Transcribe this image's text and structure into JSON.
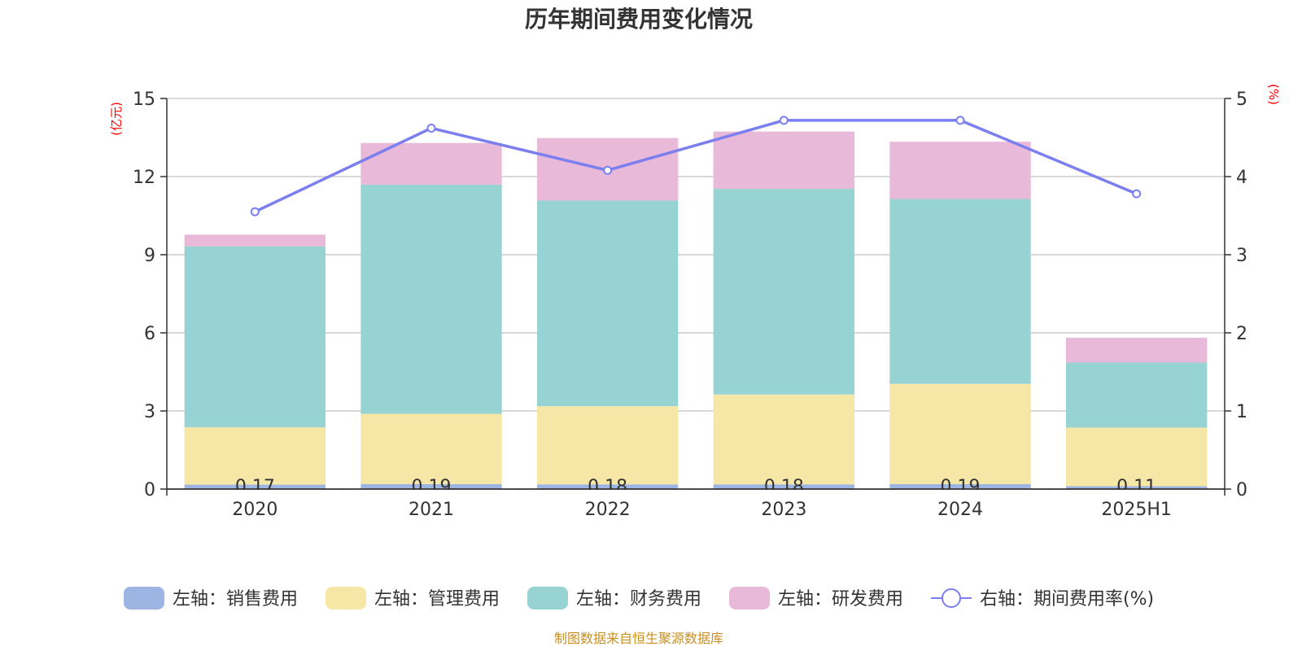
{
  "chart_data": {
    "type": "bar",
    "title": "历年期间费用变化情况",
    "y_left_unit": "(亿元)",
    "y_right_unit": "(%)",
    "categories": [
      "2020",
      "2021",
      "2022",
      "2023",
      "2024",
      "2025H1"
    ],
    "y_left_ticks": [
      "0",
      "3",
      "6",
      "9",
      "12",
      "15"
    ],
    "y_right_ticks": [
      "0",
      "1",
      "2",
      "3",
      "4",
      "5"
    ],
    "ylim_left": [
      0,
      15
    ],
    "ylim_right": [
      0,
      5
    ],
    "grid": true,
    "legend_position": "bottom",
    "series": [
      {
        "name": "左轴：销售费用",
        "color": "#9db5e2",
        "stack": true,
        "values": [
          0.17,
          0.19,
          0.18,
          0.18,
          0.19,
          0.11
        ],
        "data_labels": [
          "0.17",
          "0.19",
          "0.18",
          "0.18",
          "0.19",
          "0.11"
        ]
      },
      {
        "name": "左轴：管理费用",
        "color": "#f7e7a6",
        "stack": true,
        "values": [
          2.2,
          2.7,
          3.0,
          3.45,
          3.85,
          2.25
        ]
      },
      {
        "name": "左轴：财务费用",
        "color": "#98d3d4",
        "stack": true,
        "values": [
          6.95,
          8.8,
          7.9,
          7.9,
          7.1,
          2.5
        ]
      },
      {
        "name": "左轴：研发费用",
        "color": "#e8b9d9",
        "stack": true,
        "values": [
          0.45,
          1.6,
          2.4,
          2.2,
          2.2,
          0.95
        ]
      },
      {
        "name": "右轴：期间费用率(%)",
        "color": "#7b7fef",
        "type": "line",
        "axis": "right",
        "values": [
          3.55,
          4.62,
          4.08,
          4.72,
          4.72,
          3.78
        ]
      }
    ]
  },
  "footer": {
    "source": "制图数据来自恒生聚源数据库"
  }
}
